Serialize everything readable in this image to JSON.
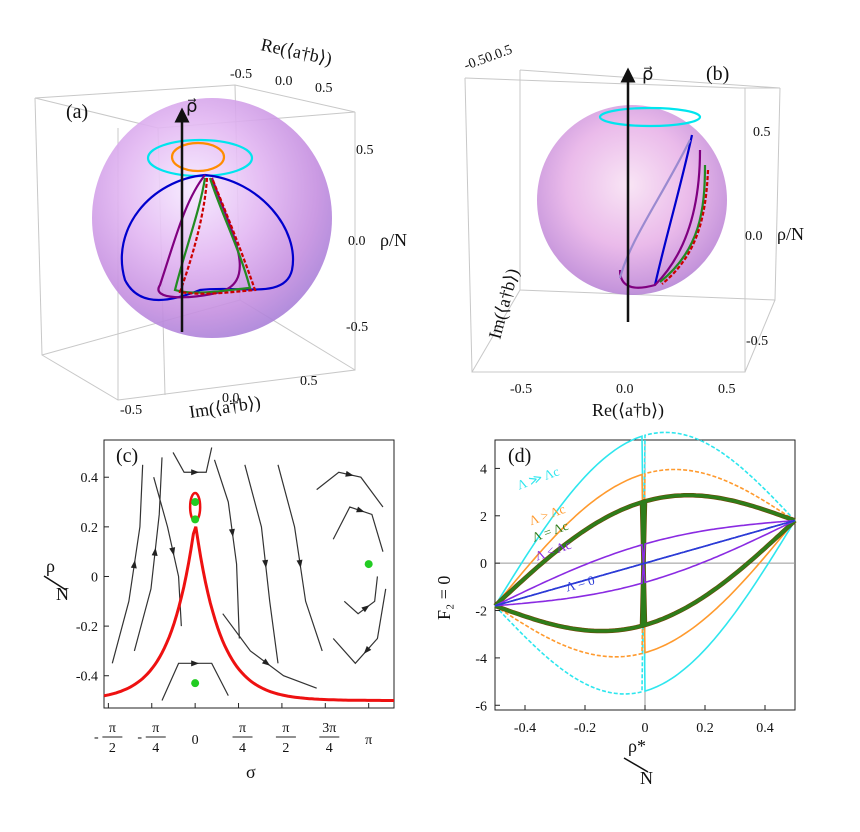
{
  "chart_data": [
    {
      "type": "scatter",
      "panel": "(a)",
      "description_free": true,
      "axes": {
        "top_label": "Re(⟨a†b⟩)",
        "top_ticks": [
          "-0.5",
          "0.0",
          "0.5"
        ],
        "right_ticks": [
          "0.5",
          "0.0",
          "-0.5"
        ],
        "right_label": "ρ/N",
        "bottom_label": "Im(⟨a†b⟩)",
        "bottom_ticks": [
          "-0.5",
          "0.0",
          "0.5"
        ],
        "vector_label": "ρ⃗"
      },
      "colors": [
        "#00e5ee",
        "#ff8c00",
        "#0000cd",
        "#228b22",
        "#cc0000",
        "#800080"
      ]
    },
    {
      "type": "scatter",
      "panel": "(b)",
      "axes": {
        "top_ticks_overlap": "-0.50.0.5",
        "right_ticks": [
          "0.5",
          "0.0",
          "-0.5"
        ],
        "right_label": "ρ/N",
        "left_label": "Im(⟨a†b⟩)",
        "bottom_ticks": [
          "-0.5",
          "0.0",
          "0.5"
        ],
        "bottom_label": "Re(⟨a†b⟩)",
        "vector_label": "ρ⃗"
      }
    },
    {
      "type": "line",
      "panel": "(c)",
      "xlabel": "σ",
      "ylabel_num": "ρ",
      "ylabel_den": "N",
      "x_ticks": [
        {
          "num": "π",
          "den": "2",
          "neg": true,
          "value": -1.5708
        },
        {
          "num": "π",
          "den": "4",
          "neg": true,
          "value": -0.7854
        },
        {
          "plain": "0",
          "value": 0
        },
        {
          "num": "π",
          "den": "4",
          "neg": false,
          "value": 0.7854
        },
        {
          "num": "π",
          "den": "2",
          "neg": false,
          "value": 1.5708
        },
        {
          "num": "3π",
          "den": "4",
          "neg": false,
          "value": 2.3562
        },
        {
          "plain": "π",
          "value": 3.1416
        }
      ],
      "y_ticks": [
        "0.4",
        "0.2",
        "0",
        "-0.2",
        "-0.4"
      ],
      "y_tick_values": [
        0.4,
        0.2,
        0,
        -0.2,
        -0.4
      ],
      "xlim": [
        -1.65,
        3.6
      ],
      "ylim": [
        -0.53,
        0.55
      ],
      "separatrix_color": "#ee1111",
      "fixed_points": [
        {
          "x": 0,
          "y": 0.3
        },
        {
          "x": 0,
          "y": 0.23
        },
        {
          "x": 3.1416,
          "y": 0.05
        },
        {
          "x": 0,
          "y": -0.43
        }
      ],
      "point_color": "#22cc22"
    },
    {
      "type": "line",
      "panel": "(d)",
      "ylabel": "F₂ = 0",
      "xlabel_num": "ρ*",
      "xlabel_den": "N",
      "x_ticks": [
        "-0.4",
        "-0.2",
        "0",
        "0.2",
        "0.4"
      ],
      "x_tick_values": [
        -0.4,
        -0.2,
        0,
        0.2,
        0.4
      ],
      "y_ticks": [
        "4",
        "2",
        "0",
        "-2",
        "-4",
        "-6"
      ],
      "y_tick_values": [
        4,
        2,
        0,
        -2,
        -4,
        -6
      ],
      "xlim": [
        -0.5,
        0.5
      ],
      "ylim": [
        -6.2,
        5.2
      ],
      "series": [
        {
          "name": "Λ ≫ Λc",
          "color": "#2ee6ee",
          "amp": 6.0
        },
        {
          "name": "Λ > Λc",
          "color": "#ff9a2e",
          "amp": 4.2
        },
        {
          "name": "Λ = Λc",
          "color": "#2e7d1a",
          "amp": 2.9,
          "edge": "#7a3b00"
        },
        {
          "name": "Λ < Λc",
          "color": "#8a2be2",
          "amp": 0.9
        },
        {
          "name": "Λ = 0",
          "color": "#2b3bd6",
          "amp": 0.0
        }
      ]
    }
  ]
}
